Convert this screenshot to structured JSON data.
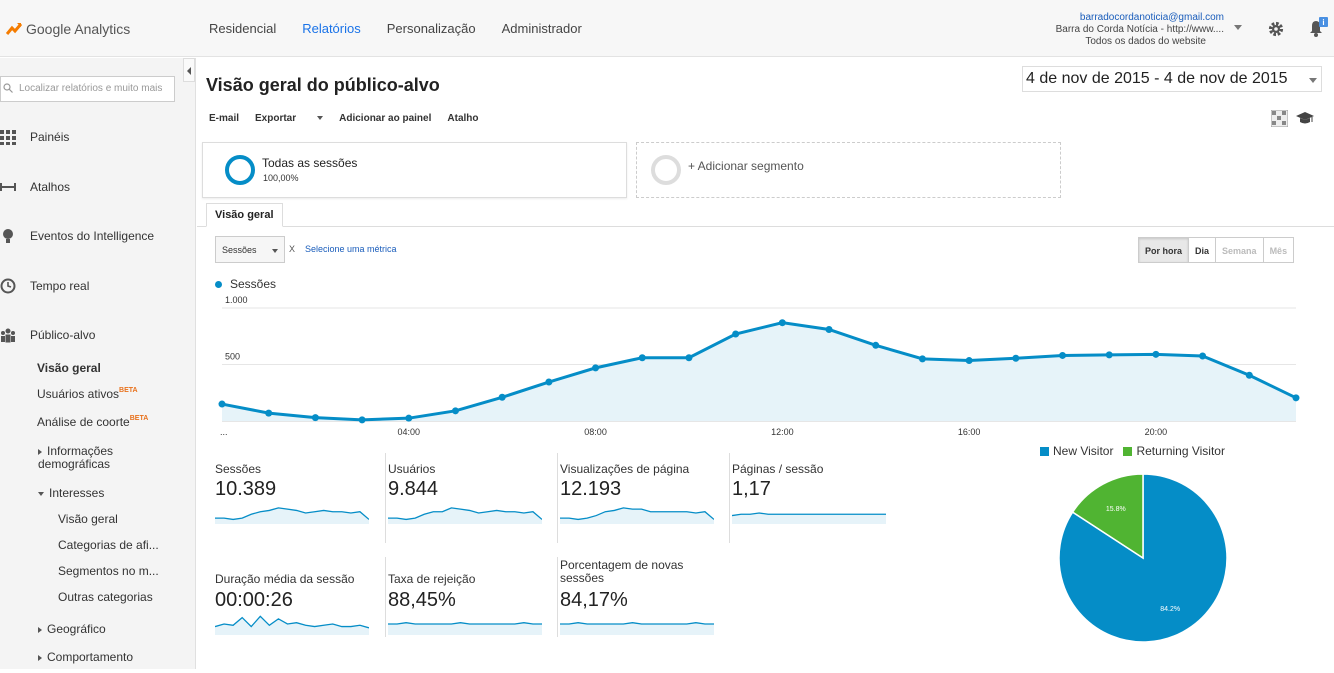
{
  "app": {
    "name": "Google Analytics"
  },
  "nav": {
    "tabs": [
      "Residencial",
      "Relatórios",
      "Personalização",
      "Administrador"
    ]
  },
  "account": {
    "email": "barradocordanoticia@gmail.com",
    "property": "Barra do Corda Notícia - http://www....",
    "view": "Todos os dados do website"
  },
  "sidebar": {
    "search_placeholder": "Localizar relatórios e muito mais",
    "items": [
      {
        "label": "Painéis",
        "icon": "grid-icon"
      },
      {
        "label": "Atalhos",
        "icon": "shortcut-icon"
      },
      {
        "label": "Eventos do Intelligence",
        "icon": "lightbulb-icon"
      },
      {
        "label": "Tempo real",
        "icon": "clock-icon"
      },
      {
        "label": "Público-alvo",
        "icon": "people-icon"
      }
    ],
    "audience": {
      "overview": "Visão geral",
      "active_users": "Usuários ativos",
      "cohort": "Análise de coorte",
      "beta": "BETA",
      "demographics": "Informações demográficas",
      "interests": "Interesses",
      "interests_sub": [
        "Visão geral",
        "Categorias de afi...",
        "Segmentos no m...",
        "Outras categorias"
      ],
      "geo": "Geográfico",
      "behavior": "Comportamento"
    }
  },
  "page": {
    "title": "Visão geral do público-alvo",
    "date_start": "4 de nov de 2015",
    "date_sep": "-",
    "date_end": "4 de nov de 2015",
    "toolbar": {
      "email": "E-mail",
      "export": "Exportar",
      "add_dashboard": "Adicionar ao painel",
      "shortcut": "Atalho"
    },
    "segment": {
      "name": "Todas as sessões",
      "pct": "100,00%",
      "add": "+ Adicionar segmento"
    },
    "tab": "Visão geral",
    "metric_select": "Sessões",
    "metric_x": "X",
    "metric_link": "Selecione uma métrica",
    "periods": [
      "Por hora",
      "Dia",
      "Semana",
      "Mês"
    ],
    "legend": "Sessões"
  },
  "colors": {
    "accent": "#058dc7",
    "green": "#50b432",
    "nav_active": "#1a73e8"
  },
  "chart_data": [
    {
      "type": "area",
      "series": [
        {
          "name": "Sessões",
          "values": [
            150,
            70,
            30,
            10,
            25,
            90,
            210,
            345,
            470,
            560,
            560,
            770,
            870,
            810,
            670,
            550,
            535,
            555,
            580,
            585,
            590,
            575,
            405,
            205
          ]
        }
      ],
      "x": [
        0,
        1,
        2,
        3,
        4,
        5,
        6,
        7,
        8,
        9,
        10,
        11,
        12,
        13,
        14,
        15,
        16,
        17,
        18,
        19,
        20,
        21,
        22,
        23
      ],
      "xtick_labels": [
        "...",
        "04:00",
        "08:00",
        "12:00",
        "16:00",
        "20:00"
      ],
      "ytick_labels": [
        "1.000",
        "500"
      ],
      "ylim": [
        0,
        1000
      ],
      "grid": true
    },
    {
      "type": "pie",
      "categories": [
        "New Visitor",
        "Returning Visitor"
      ],
      "values": [
        84.2,
        15.8
      ],
      "labels": [
        "84.2%",
        "15.8%"
      ],
      "colors": [
        "#058dc7",
        "#50b432"
      ],
      "legend": "top"
    }
  ],
  "kpis": [
    {
      "label": "Sessões",
      "value": "10.389",
      "spark": [
        3,
        3,
        2,
        3,
        6,
        8,
        9,
        11,
        10,
        9,
        7,
        8,
        9,
        8,
        8,
        7,
        8,
        2
      ]
    },
    {
      "label": "Usuários",
      "value": "9.844",
      "spark": [
        3,
        3,
        2,
        3,
        6,
        8,
        8,
        11,
        10,
        9,
        7,
        8,
        9,
        8,
        8,
        7,
        8,
        2
      ]
    },
    {
      "label": "Visualizações de página",
      "value": "12.193",
      "spark": [
        3,
        3,
        2,
        3,
        5,
        8,
        9,
        11,
        10,
        10,
        8,
        8,
        8,
        8,
        8,
        7,
        8,
        2
      ]
    },
    {
      "label": "Páginas / sessão",
      "value": "1,17",
      "spark": [
        5,
        6,
        6,
        7,
        6,
        6,
        6,
        6,
        6,
        6,
        6,
        6,
        6,
        6,
        6,
        6,
        6,
        6
      ]
    },
    {
      "label": "Duração média da sessão",
      "value": "00:00:26",
      "spark": [
        5,
        7,
        6,
        12,
        5,
        13,
        6,
        11,
        7,
        8,
        6,
        5,
        6,
        7,
        5,
        5,
        6,
        4
      ]
    },
    {
      "label": "Taxa de rejeição",
      "value": "88,45%",
      "spark": [
        7,
        7,
        8,
        7,
        7,
        7,
        7,
        7,
        8,
        7,
        7,
        7,
        7,
        7,
        7,
        8,
        7,
        7
      ]
    },
    {
      "label": "Porcentagem de novas sessões",
      "value": "84,17%",
      "spark": [
        7,
        7,
        8,
        7,
        7,
        7,
        7,
        7,
        8,
        7,
        7,
        7,
        7,
        7,
        7,
        8,
        7,
        7
      ]
    }
  ]
}
